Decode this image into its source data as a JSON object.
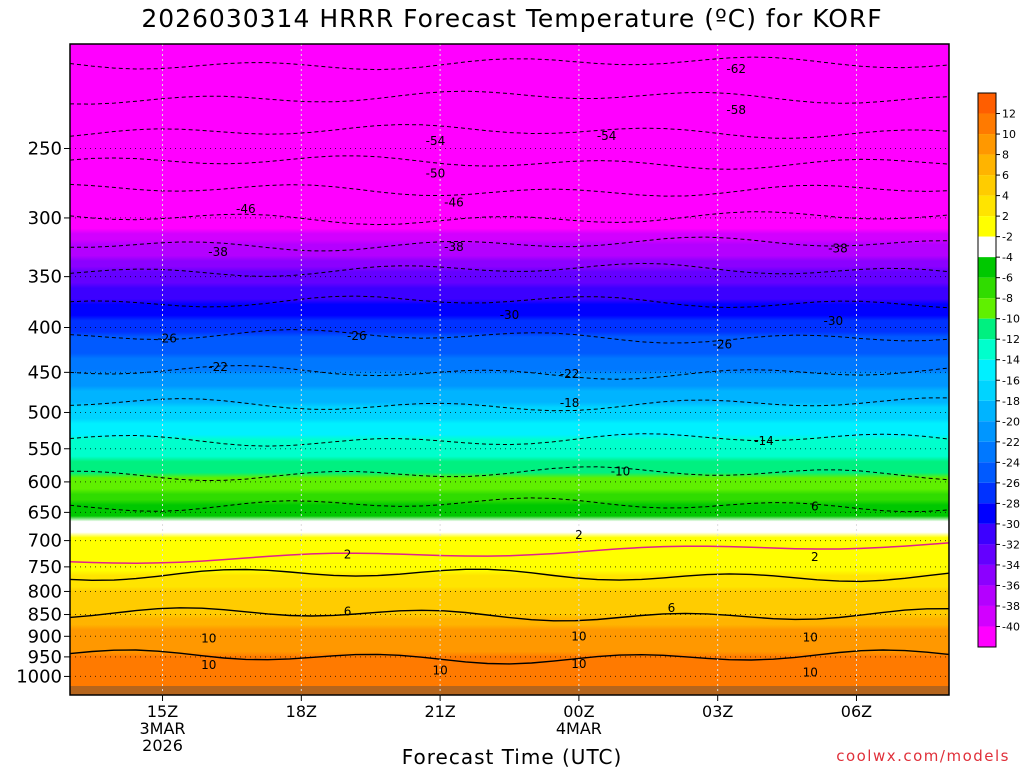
{
  "title": "2026030314 HRRR Forecast Temperature (ºC) for KORF",
  "xlabel": "Forecast Time (UTC)",
  "credit": "coolwx.com/models",
  "chart_data": {
    "type": "heatmap",
    "title": "2026030314 HRRR Forecast Temperature (ºC) for KORF",
    "xlabel": "Forecast Time (UTC)",
    "ylabel": "",
    "yscale": "log",
    "ylim": [
      1050,
      190
    ],
    "xlim": [
      -1,
      18
    ],
    "x_ticks": [
      {
        "hour": 1,
        "label": [
          "15Z",
          "3MAR",
          "2026"
        ]
      },
      {
        "hour": 4,
        "label": [
          "18Z"
        ]
      },
      {
        "hour": 7,
        "label": [
          "21Z"
        ]
      },
      {
        "hour": 10,
        "label": [
          "00Z",
          "4MAR"
        ]
      },
      {
        "hour": 13,
        "label": [
          "03Z"
        ]
      },
      {
        "hour": 16,
        "label": [
          "06Z"
        ]
      }
    ],
    "y_ticks": [
      250,
      300,
      350,
      400,
      450,
      500,
      550,
      600,
      650,
      700,
      750,
      800,
      850,
      900,
      950,
      1000
    ],
    "grid": {
      "x_dotted": true,
      "y_dotted": true
    },
    "colorbar": {
      "position": "right",
      "labels": [
        12,
        10,
        8,
        6,
        4,
        2,
        -2,
        -4,
        -6,
        -8,
        -10,
        -12,
        -14,
        -16,
        -18,
        -20,
        -22,
        -24,
        -26,
        -28,
        -30,
        -32,
        -34,
        -36,
        -38,
        -40
      ],
      "colors": [
        "#ff5e00",
        "#ff7a00",
        "#ff9800",
        "#ffb400",
        "#ffcc00",
        "#ffe400",
        "#ffff00",
        "#ffffff",
        "#00c800",
        "#30dc00",
        "#60f000",
        "#00f080",
        "#00ffcc",
        "#00f0ff",
        "#00d4ff",
        "#00b4ff",
        "#0096ff",
        "#0078ff",
        "#005aff",
        "#0032ff",
        "#0000ff",
        "#3c00ff",
        "#6400ff",
        "#8c00ff",
        "#b400ff",
        "#d200ff",
        "#ff00ff"
      ]
    },
    "temperature_profile": [
      {
        "pressure": 1000,
        "temp": 11
      },
      {
        "pressure": 950,
        "temp": 10
      },
      {
        "pressure": 900,
        "temp": 9
      },
      {
        "pressure": 850,
        "temp": 6
      },
      {
        "pressure": 800,
        "temp": 4
      },
      {
        "pressure": 750,
        "temp": 1
      },
      {
        "pressure": 700,
        "temp": -1
      },
      {
        "pressure": 650,
        "temp": -5
      },
      {
        "pressure": 600,
        "temp": -9
      },
      {
        "pressure": 550,
        "temp": -13
      },
      {
        "pressure": 500,
        "temp": -17
      },
      {
        "pressure": 450,
        "temp": -22
      },
      {
        "pressure": 400,
        "temp": -27
      },
      {
        "pressure": 350,
        "temp": -33
      },
      {
        "pressure": 300,
        "temp": -42
      },
      {
        "pressure": 250,
        "temp": -52
      },
      {
        "pressure": 200,
        "temp": -62
      }
    ],
    "contour_labels": [
      {
        "hour": 13.4,
        "pressure": 203,
        "text": "-62"
      },
      {
        "hour": 13.4,
        "pressure": 226,
        "text": "-58"
      },
      {
        "hour": 6.9,
        "pressure": 245,
        "text": "-54"
      },
      {
        "hour": 10.6,
        "pressure": 242,
        "text": "-54"
      },
      {
        "hour": 6.9,
        "pressure": 267,
        "text": "-50"
      },
      {
        "hour": 2.8,
        "pressure": 293,
        "text": "-46"
      },
      {
        "hour": 7.3,
        "pressure": 288,
        "text": "-46"
      },
      {
        "hour": 2.2,
        "pressure": 328,
        "text": "-38"
      },
      {
        "hour": 7.3,
        "pressure": 324,
        "text": "-38"
      },
      {
        "hour": 15.6,
        "pressure": 325,
        "text": "-38"
      },
      {
        "hour": 8.5,
        "pressure": 387,
        "text": "-30"
      },
      {
        "hour": 15.5,
        "pressure": 393,
        "text": "-30"
      },
      {
        "hour": 1.1,
        "pressure": 412,
        "text": "-26"
      },
      {
        "hour": 5.2,
        "pressure": 409,
        "text": "-26"
      },
      {
        "hour": 13.1,
        "pressure": 418,
        "text": "-26"
      },
      {
        "hour": 2.2,
        "pressure": 444,
        "text": "-22"
      },
      {
        "hour": 9.8,
        "pressure": 452,
        "text": "-22"
      },
      {
        "hour": 9.8,
        "pressure": 488,
        "text": "-18"
      },
      {
        "hour": 14.0,
        "pressure": 539,
        "text": "-14"
      },
      {
        "hour": 10.9,
        "pressure": 584,
        "text": "-10"
      },
      {
        "hour": 15.1,
        "pressure": 640,
        "text": "6"
      },
      {
        "hour": 10.0,
        "pressure": 690,
        "text": "2"
      },
      {
        "hour": 5.0,
        "pressure": 726,
        "text": "2"
      },
      {
        "hour": 15.1,
        "pressure": 731,
        "text": "2"
      },
      {
        "hour": 12.0,
        "pressure": 835,
        "text": "6"
      },
      {
        "hour": 5.0,
        "pressure": 843,
        "text": "6"
      },
      {
        "hour": 2.0,
        "pressure": 905,
        "text": "10"
      },
      {
        "hour": 10.0,
        "pressure": 901,
        "text": "10"
      },
      {
        "hour": 15.0,
        "pressure": 903,
        "text": "10"
      },
      {
        "hour": 2.0,
        "pressure": 970,
        "text": "10"
      },
      {
        "hour": 10.0,
        "pressure": 968,
        "text": "10"
      },
      {
        "hour": 7.0,
        "pressure": 985,
        "text": "10"
      },
      {
        "hour": 15.0,
        "pressure": 990,
        "text": "10"
      }
    ]
  }
}
